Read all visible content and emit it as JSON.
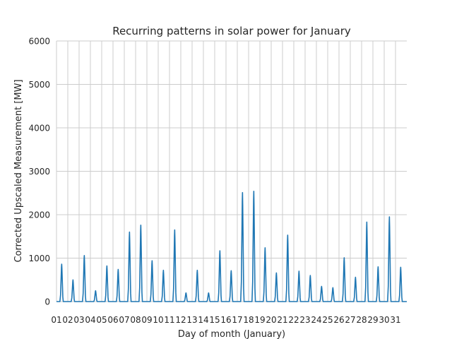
{
  "chart_data": {
    "type": "line",
    "title": "Recurring patterns in solar power for January",
    "xlabel": "Day of month (January)",
    "ylabel": "Corrected Upscaled Measurement [MW]",
    "ylim": [
      0,
      6000
    ],
    "yticks": [
      0,
      1000,
      2000,
      3000,
      4000,
      5000,
      6000
    ],
    "xlim": [
      1,
      32
    ],
    "xticks": [
      "01",
      "02",
      "03",
      "04",
      "05",
      "06",
      "07",
      "08",
      "09",
      "10",
      "11",
      "12",
      "13",
      "14",
      "15",
      "16",
      "17",
      "18",
      "19",
      "20",
      "21",
      "22",
      "23",
      "24",
      "25",
      "26",
      "27",
      "28",
      "29",
      "30",
      "31"
    ],
    "grid": true,
    "line_color": "#1f77b4",
    "daily_peaks_MW": [
      860,
      500,
      1060,
      250,
      820,
      740,
      1600,
      1760,
      940,
      720,
      1650,
      200,
      720,
      200,
      1170,
      710,
      2510,
      2540,
      1240,
      660,
      1530,
      700,
      600,
      350,
      320,
      1010,
      560,
      1830,
      800,
      1950,
      790
    ]
  }
}
